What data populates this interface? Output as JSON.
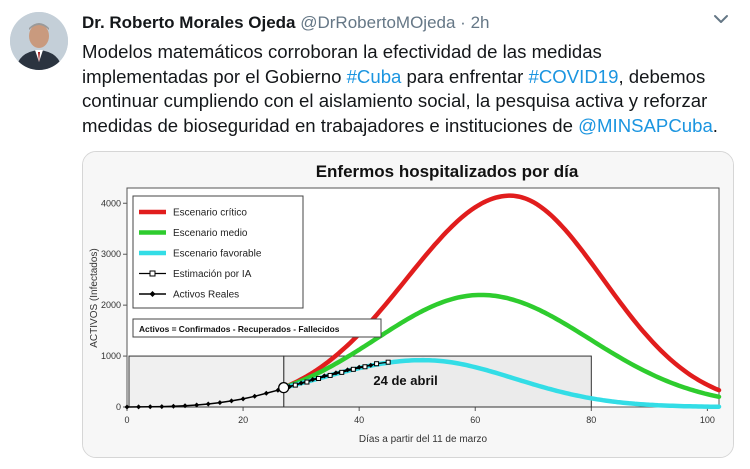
{
  "tweet": {
    "display_name": "Dr. Roberto Morales Ojeda",
    "handle": "@DrRobertoMOjeda",
    "separator": "·",
    "time": "2h",
    "text_lines": [
      [
        "Modelos matemáticos corroboran la efectividad de las medidas"
      ],
      [
        "implementadas por el Gobierno ",
        "#Cuba",
        " para enfrentar ",
        "#COVID19",
        ", debemos"
      ],
      [
        "continuar cumpliendo con el aislamiento social, la pesquisa activa y reforzar"
      ],
      [
        "medidas de bioseguridad en trabajadores e instituciones de ",
        "@MINSAPCuba",
        "."
      ]
    ],
    "links": [
      "#Cuba",
      "#COVID19",
      "@MINSAPCuba"
    ],
    "link_color": "#1b95e0"
  },
  "chart_data": {
    "type": "line",
    "title": "Enfermos hospitalizados por día",
    "xlabel": "Días a partir del 11 de marzo",
    "ylabel": "ACTIVOS (Infectados)",
    "xlim": [
      0,
      102
    ],
    "ylim": [
      0,
      4300
    ],
    "x_ticks": [
      0,
      20,
      40,
      60,
      80,
      100
    ],
    "y_ticks": [
      0,
      1000,
      2000,
      3000,
      4000
    ],
    "legend_position": "top-left",
    "series": [
      {
        "name": "Escenario crítico",
        "color": "#e11d1d",
        "peak_day": 66,
        "peak_value": 4150,
        "start_day": 27,
        "start_value": 380,
        "end_value": 330
      },
      {
        "name": "Escenario medio",
        "color": "#2ecc2e",
        "peak_day": 61,
        "peak_value": 2200,
        "start_day": 27,
        "start_value": 380,
        "end_value": 200
      },
      {
        "name": "Escenario favorable",
        "color": "#33dde6",
        "peak_day": 51,
        "peak_value": 920,
        "start_day": 27,
        "start_value": 380,
        "end_value": 0
      },
      {
        "name": "Estimación por IA",
        "color": "#000000",
        "x": [
          27,
          29,
          31,
          33,
          35,
          37,
          39,
          41,
          43,
          45
        ],
        "y": [
          380,
          430,
          490,
          560,
          620,
          680,
          740,
          790,
          850,
          880
        ]
      },
      {
        "name": "Activos Reales",
        "color": "#000000",
        "x": [
          0,
          2,
          4,
          6,
          8,
          10,
          12,
          14,
          16,
          18,
          20,
          22,
          24,
          26,
          28,
          30,
          32,
          34,
          36,
          38,
          40,
          42
        ],
        "y": [
          0,
          2,
          4,
          8,
          15,
          25,
          40,
          60,
          85,
          120,
          160,
          210,
          270,
          330,
          400,
          470,
          540,
          610,
          670,
          730,
          780,
          820
        ]
      }
    ],
    "annotations": {
      "note": "Activos = Confirmados - Recuperados - Fallecidos",
      "date_label": "24 de abril",
      "highlight_box": {
        "x_range": [
          27,
          80
        ],
        "y_range": [
          0,
          1000
        ]
      },
      "marker": {
        "x": 27,
        "y": 380
      }
    }
  }
}
